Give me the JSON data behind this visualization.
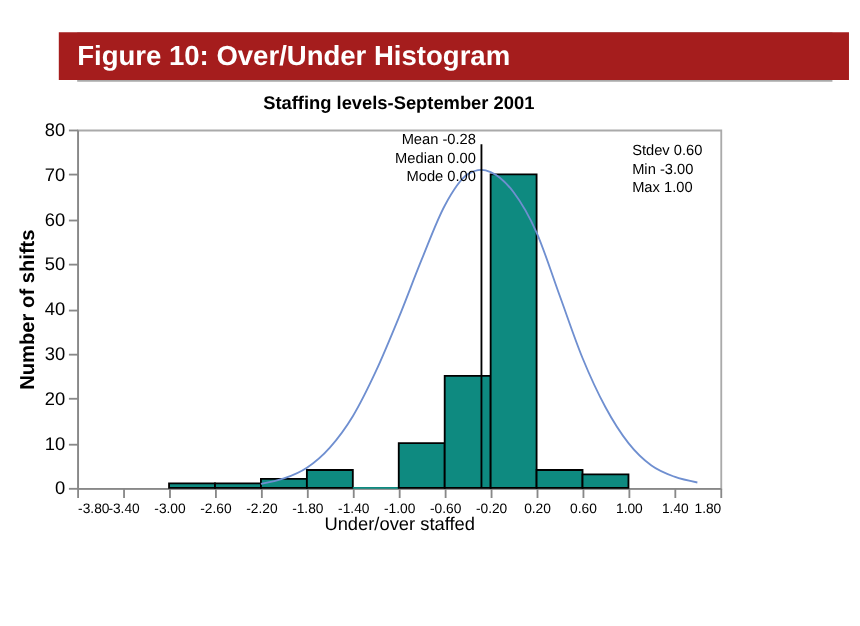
{
  "chart_data": {
    "type": "histogram",
    "title": "Figure 10: Over/Under Histogram",
    "subtitle": "Staffing levels-September 2001",
    "xlabel": "Under/over staffed",
    "ylabel": "Number of shifts",
    "bins": [
      -3.0,
      -2.6,
      -2.2,
      -1.8,
      -1.4,
      -1.0,
      -0.6,
      -0.2,
      0.2,
      0.6,
      1.0
    ],
    "values": [
      1,
      1,
      2,
      4,
      0,
      10,
      25,
      70,
      4,
      3
    ],
    "color": "#0e8a80",
    "series": [
      {
        "type": "line",
        "color": "#6f8fd0",
        "x": [
          -2.2,
          -2.0,
          -1.8,
          -1.6,
          -1.4,
          -1.2,
          -1.0,
          -0.8,
          -0.6,
          -0.4,
          -0.28,
          -0.2,
          0.0,
          0.2,
          0.4,
          0.6,
          0.8,
          1.0,
          1.2,
          1.4,
          1.6
        ],
        "values": [
          0.9,
          2.1,
          4.5,
          9,
          16,
          26,
          38,
          51,
          63,
          70,
          71,
          70.5,
          66,
          57,
          43,
          29,
          18,
          10,
          5,
          2.5,
          1.2
        ]
      }
    ],
    "ref_lines": [
      {
        "axis": "x",
        "value": -0.28,
        "color": "#000000"
      }
    ],
    "annotations": [
      "Mean -0.28",
      "Median 0.00",
      "Mode 0.00",
      "Stdev 0.60",
      "Min -3.00",
      "Max 1.00"
    ],
    "xlim": [
      -3.8,
      1.8
    ],
    "xticks": [
      {
        "value": -3.8,
        "label": "-3.80"
      },
      {
        "value": -3.4,
        "label": "-3.40"
      },
      {
        "value": -3.0,
        "label": "-3.00"
      },
      {
        "value": -2.6,
        "label": "-2.60"
      },
      {
        "value": -2.2,
        "label": "-2.20"
      },
      {
        "value": -1.8,
        "label": "-1.80"
      },
      {
        "value": -1.4,
        "label": "-1.40"
      },
      {
        "value": -1.0,
        "label": "-1.00"
      },
      {
        "value": -0.6,
        "label": "-0.60"
      },
      {
        "value": -0.2,
        "label": "-0.20"
      },
      {
        "value": 0.2,
        "label": "0.20"
      },
      {
        "value": 0.6,
        "label": "0.60"
      },
      {
        "value": 1.0,
        "label": "1.00"
      },
      {
        "value": 1.4,
        "label": "1.40"
      },
      {
        "value": 1.8,
        "label": "1.80"
      }
    ],
    "ylim": [
      0,
      80
    ],
    "yticks": [
      0,
      10,
      20,
      30,
      40,
      50,
      60,
      70,
      80
    ],
    "grid": false
  }
}
